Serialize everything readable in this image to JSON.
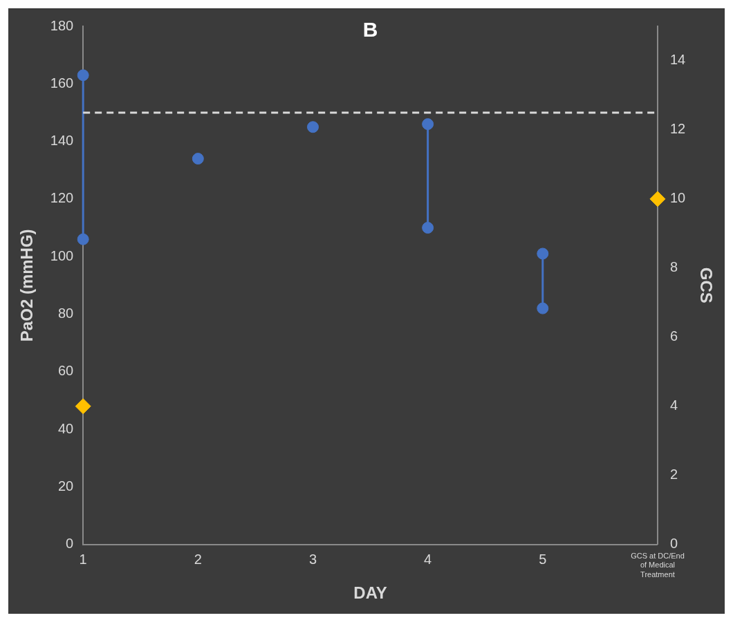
{
  "chart_data": {
    "type": "scatter",
    "title": "B",
    "xlabel": "DAY",
    "ylabel": "PaO2 (mmHG)",
    "y2label": "GCS",
    "categories": [
      "1",
      "2",
      "3",
      "4",
      "5",
      "GCS at DC/End of Medical Treatment"
    ],
    "series": [
      {
        "color": "#4472c4",
        "marker": "circle",
        "values": [
          163,
          134,
          145,
          146,
          101,
          null
        ]
      },
      {
        "color": "#4472c4",
        "marker": "circle",
        "values": [
          106,
          null,
          null,
          110,
          82,
          null
        ]
      },
      {
        "axis": "y2",
        "color": "#ffc000",
        "marker": "diamond",
        "values": [
          4,
          null,
          null,
          null,
          null,
          10
        ]
      }
    ],
    "ylim": [
      0,
      180
    ],
    "yticks": [
      0,
      20,
      40,
      60,
      80,
      100,
      120,
      140,
      160,
      180
    ],
    "y2lim": [
      0,
      15
    ],
    "y2ticks": [
      0,
      2,
      4,
      6,
      8,
      10,
      12,
      14
    ],
    "ref_lines": [
      {
        "axis": "y",
        "value": 150,
        "color": "#d9d9d9",
        "line_style": "dashed"
      }
    ],
    "grid": false,
    "legend": false
  }
}
